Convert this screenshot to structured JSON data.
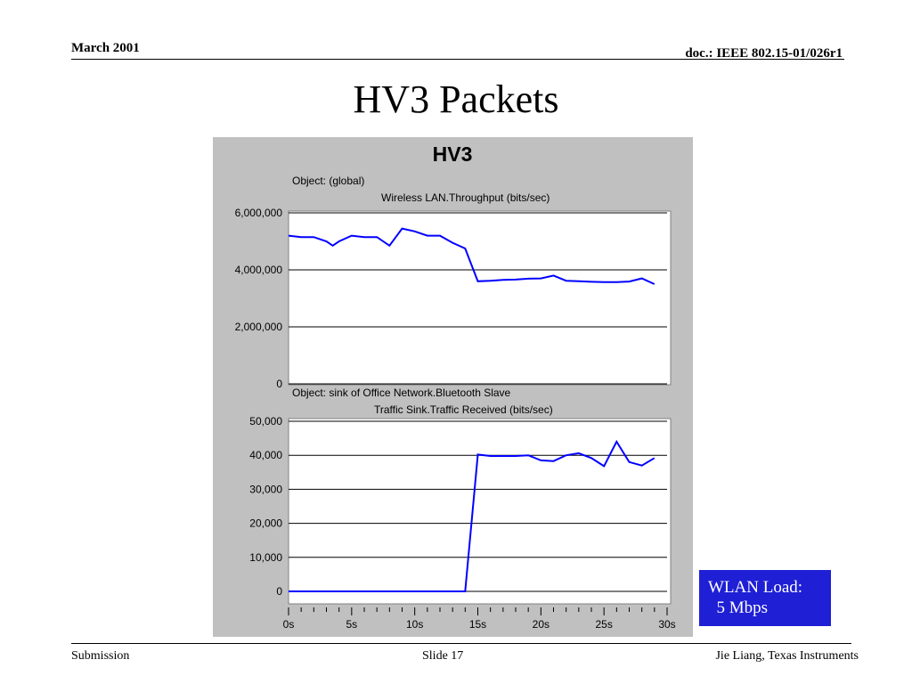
{
  "slide": {
    "header_left": "March 2001",
    "header_right": "doc.: IEEE 802.15-01/026r1",
    "title": "HV3 Packets",
    "footer_left": "Submission",
    "footer_center": "Slide 17",
    "footer_right": "Jie Liang, Texas Instruments"
  },
  "callout": {
    "line1": "WLAN Load:",
    "line2": "  5 Mbps",
    "background": "#1f1fd6",
    "text_color": "#ffffff"
  },
  "colors": {
    "panel": "#c0c0c0",
    "plot_bg": "#ffffff",
    "series": "#0000ff"
  },
  "chart_data": [
    {
      "type": "line",
      "title": "HV3",
      "object_label": "Object: (global)",
      "ylabel": "Wireless LAN.Throughput (bits/sec)",
      "ylim": [
        0,
        6000000
      ],
      "yticks": [
        0,
        2000000,
        4000000,
        6000000
      ],
      "ytick_labels": [
        "0",
        "2,000,000",
        "4,000,000",
        "6,000,000"
      ],
      "xlim": [
        0,
        30
      ],
      "grid": true,
      "series": [
        {
          "color": "#0000ff",
          "x": [
            0,
            1,
            2,
            3,
            3.5,
            4,
            5,
            6,
            7,
            8,
            9,
            10,
            11,
            12,
            13,
            14,
            15,
            16,
            17,
            18,
            19,
            20,
            21,
            22,
            23,
            24,
            25,
            26,
            27,
            28,
            29
          ],
          "y": [
            5200000,
            5150000,
            5150000,
            5000000,
            4850000,
            5000000,
            5200000,
            5150000,
            5150000,
            4850000,
            5450000,
            5350000,
            5200000,
            5200000,
            4950000,
            4750000,
            3600000,
            3620000,
            3650000,
            3660000,
            3690000,
            3700000,
            3800000,
            3620000,
            3600000,
            3580000,
            3570000,
            3570000,
            3590000,
            3700000,
            3500000
          ]
        }
      ]
    },
    {
      "type": "line",
      "object_label": "Object: sink of Office Network.Bluetooth Slave",
      "ylabel": "Traffic Sink.Traffic Received (bits/sec)",
      "ylim": [
        0,
        50000
      ],
      "yticks": [
        0,
        10000,
        20000,
        30000,
        40000,
        50000
      ],
      "ytick_labels": [
        "0",
        "10,000",
        "20,000",
        "30,000",
        "40,000",
        "50,000"
      ],
      "xlim": [
        0,
        30
      ],
      "xticks": [
        0,
        5,
        10,
        15,
        20,
        25,
        30
      ],
      "xtick_labels": [
        "0s",
        "5s",
        "10s",
        "15s",
        "20s",
        "25s",
        "30s"
      ],
      "grid": true,
      "series": [
        {
          "color": "#0000ff",
          "x": [
            0,
            2,
            4,
            6,
            8,
            10,
            12,
            13.5,
            14,
            15,
            16,
            17,
            18,
            19,
            20,
            21,
            22,
            23,
            24,
            25,
            26,
            27,
            28,
            29
          ],
          "y": [
            0,
            0,
            0,
            0,
            0,
            0,
            0,
            0,
            0,
            40200,
            39800,
            39800,
            39800,
            40000,
            38500,
            38300,
            40000,
            40600,
            39200,
            36800,
            44000,
            38000,
            37000,
            39200
          ]
        }
      ]
    }
  ]
}
